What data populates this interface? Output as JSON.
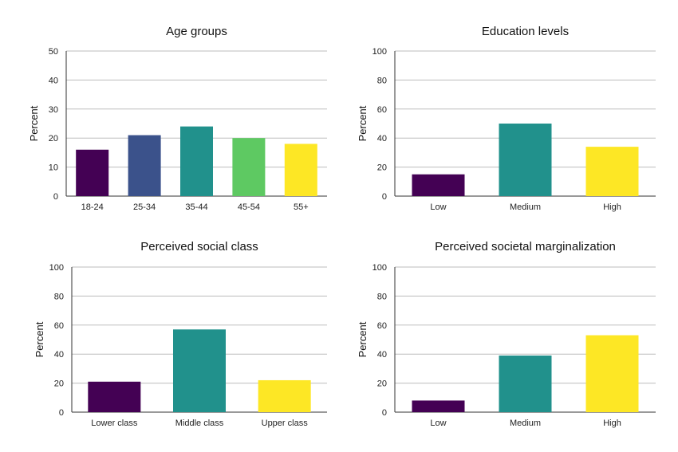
{
  "chart_data": [
    {
      "type": "bar",
      "title": "Age groups",
      "ylabel": "Percent",
      "xlabel": "",
      "categories": [
        "18-24",
        "25-34",
        "35-44",
        "45-54",
        "55+"
      ],
      "values": [
        16,
        21,
        24,
        20,
        18
      ],
      "colors": [
        "#440154",
        "#3b528b",
        "#21918c",
        "#5ec962",
        "#fde725"
      ],
      "ylim": [
        0,
        50
      ],
      "yticks": [
        0,
        10,
        20,
        30,
        40,
        50
      ],
      "grid": true,
      "legend": "none"
    },
    {
      "type": "bar",
      "title": "Education levels",
      "ylabel": "Percent",
      "xlabel": "",
      "categories": [
        "Low",
        "Medium",
        "High"
      ],
      "values": [
        15,
        50,
        34
      ],
      "colors": [
        "#440154",
        "#21918c",
        "#fde725"
      ],
      "ylim": [
        0,
        100
      ],
      "yticks": [
        0,
        20,
        40,
        60,
        80,
        100
      ],
      "grid": true,
      "legend": "none"
    },
    {
      "type": "bar",
      "title": "Perceived social class",
      "ylabel": "Percent",
      "xlabel": "",
      "categories": [
        "Lower class",
        "Middle class",
        "Upper class"
      ],
      "values": [
        21,
        57,
        22
      ],
      "colors": [
        "#440154",
        "#21918c",
        "#fde725"
      ],
      "ylim": [
        0,
        100
      ],
      "yticks": [
        0,
        20,
        40,
        60,
        80,
        100
      ],
      "grid": true,
      "legend": "none"
    },
    {
      "type": "bar",
      "title": "Perceived societal marginalization",
      "ylabel": "Percent",
      "xlabel": "",
      "categories": [
        "Low",
        "Medium",
        "High"
      ],
      "values": [
        8,
        39,
        53
      ],
      "colors": [
        "#440154",
        "#21918c",
        "#fde725"
      ],
      "ylim": [
        0,
        100
      ],
      "yticks": [
        0,
        20,
        40,
        60,
        80,
        100
      ],
      "grid": true,
      "legend": "none"
    }
  ]
}
